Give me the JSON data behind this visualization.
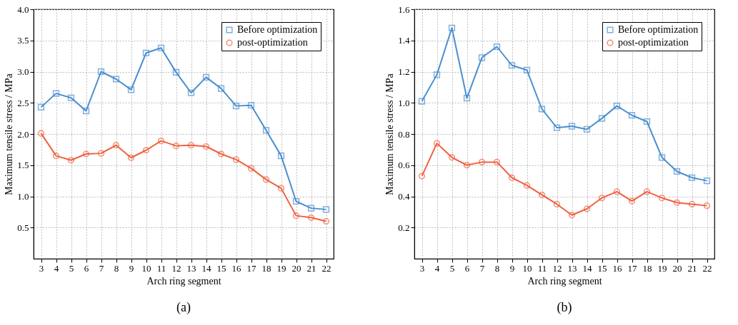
{
  "chart_data": [
    {
      "type": "line",
      "title": "(a)",
      "xlabel": "Arch ring segment",
      "ylabel": "Maximum tensile stress / MPa",
      "categories": [
        "3",
        "4",
        "5",
        "6",
        "7",
        "8",
        "9",
        "10",
        "11",
        "12",
        "13",
        "14",
        "15",
        "16",
        "17",
        "18",
        "19",
        "20",
        "21",
        "22"
      ],
      "series": [
        {
          "name": "Before optimization",
          "color": "#4a8fd0",
          "marker": "square",
          "values": [
            2.43,
            2.65,
            2.58,
            2.37,
            3.0,
            2.88,
            2.71,
            3.3,
            3.38,
            2.99,
            2.66,
            2.91,
            2.73,
            2.45,
            2.46,
            2.06,
            1.65,
            0.92,
            0.81,
            0.79
          ]
        },
        {
          "name": "post-optimization",
          "color": "#f0603f",
          "marker": "circle",
          "values": [
            2.01,
            1.65,
            1.58,
            1.68,
            1.69,
            1.82,
            1.62,
            1.74,
            1.89,
            1.81,
            1.82,
            1.8,
            1.68,
            1.59,
            1.45,
            1.27,
            1.13,
            0.69,
            0.66,
            0.6
          ]
        }
      ],
      "ylim": [
        0,
        4
      ],
      "yticks": [
        0.5,
        {
          "value": 1,
          "label": "1.0"
        },
        1.5,
        {
          "value": 2,
          "label": "2.0"
        },
        2.5,
        {
          "value": 3,
          "label": "3.0"
        },
        3.5,
        {
          "value": 4,
          "label": "4.0"
        }
      ],
      "grid": true,
      "legend": "top right"
    },
    {
      "type": "line",
      "title": "(b)",
      "xlabel": "Arch ring segment",
      "ylabel": "Maximum tensile stress / MPa",
      "categories": [
        "3",
        "4",
        "5",
        "6",
        "7",
        "8",
        "9",
        "10",
        "11",
        "12",
        "13",
        "14",
        "15",
        "16",
        "17",
        "18",
        "19",
        "20",
        "21",
        "22"
      ],
      "series": [
        {
          "name": "Before optimization",
          "color": "#4a8fd0",
          "marker": "square",
          "values": [
            1.01,
            1.18,
            1.48,
            1.03,
            1.29,
            1.36,
            1.24,
            1.21,
            0.96,
            0.84,
            0.85,
            0.83,
            0.9,
            0.98,
            0.92,
            0.88,
            0.65,
            0.56,
            0.52,
            0.5
          ]
        },
        {
          "name": "post-optimization",
          "color": "#f0603f",
          "marker": "circle",
          "values": [
            0.53,
            0.74,
            0.65,
            0.6,
            0.62,
            0.62,
            0.52,
            0.47,
            0.41,
            0.35,
            0.28,
            0.32,
            0.39,
            0.43,
            0.37,
            0.43,
            0.39,
            0.36,
            0.35,
            0.34
          ]
        }
      ],
      "ylim": [
        0,
        1.6
      ],
      "yticks": [
        0.2,
        0.4,
        0.6,
        0.8,
        {
          "value": 1,
          "label": "1.0"
        },
        1.2,
        1.4,
        1.6
      ],
      "grid": true,
      "legend": "top right"
    }
  ]
}
